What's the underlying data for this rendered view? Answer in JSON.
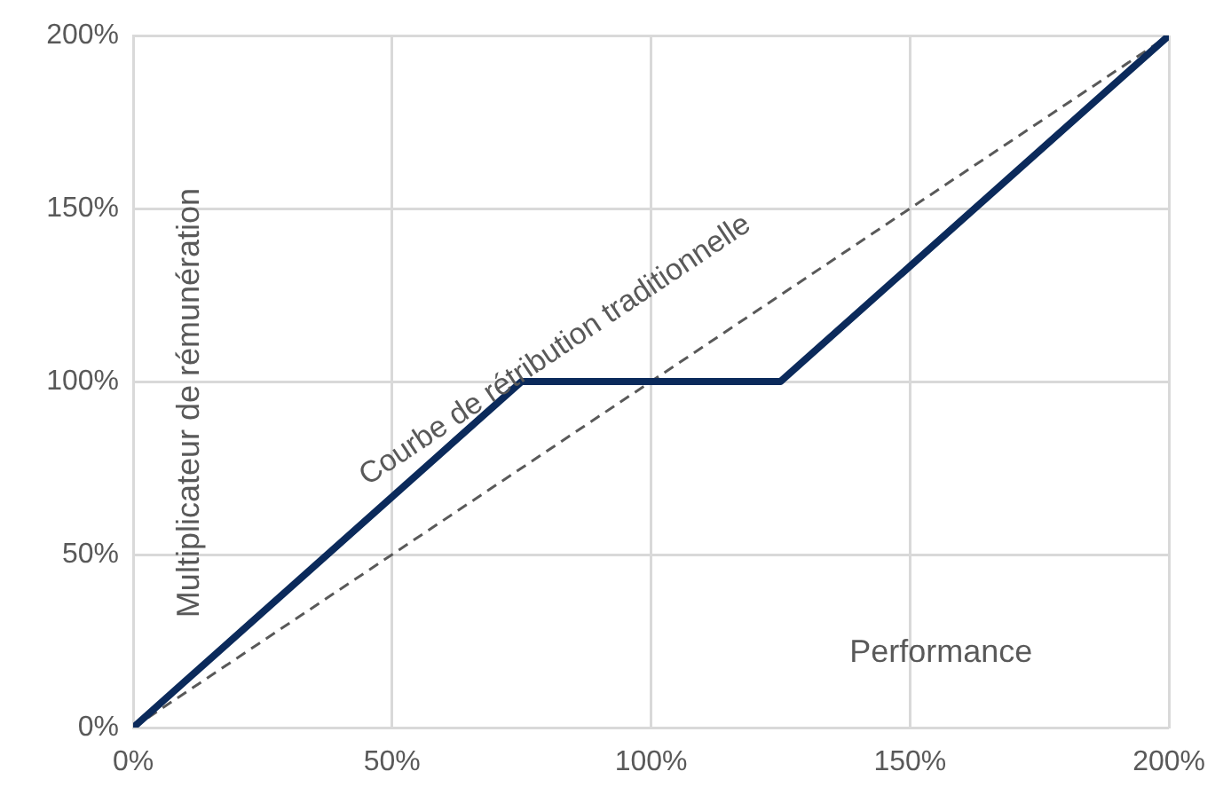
{
  "chart_data": {
    "type": "line",
    "xlabel": "Performance",
    "ylabel": "Multiplicateur de rémunération",
    "xlim": [
      0,
      200
    ],
    "ylim": [
      0,
      200
    ],
    "xticks": [
      {
        "value": 0,
        "label": "0%"
      },
      {
        "value": 50,
        "label": "50%"
      },
      {
        "value": 100,
        "label": "100%"
      },
      {
        "value": 150,
        "label": "150%"
      },
      {
        "value": 200,
        "label": "200%"
      }
    ],
    "yticks": [
      {
        "value": 0,
        "label": "0%"
      },
      {
        "value": 50,
        "label": "50%"
      },
      {
        "value": 100,
        "label": "100%"
      },
      {
        "value": 150,
        "label": "150%"
      },
      {
        "value": 200,
        "label": "200%"
      }
    ],
    "grid": true,
    "legend": false,
    "marker": "none",
    "series": [
      {
        "color": "#0b2a5b",
        "x": [
          0,
          75,
          125,
          200
        ],
        "values": [
          0,
          100,
          100,
          200
        ],
        "line_style": "solid"
      },
      {
        "name": "Courbe de rétribution traditionnelle",
        "color": "#595959",
        "x": [
          0,
          200
        ],
        "values": [
          0,
          200
        ],
        "line_style": "dashed"
      }
    ]
  }
}
